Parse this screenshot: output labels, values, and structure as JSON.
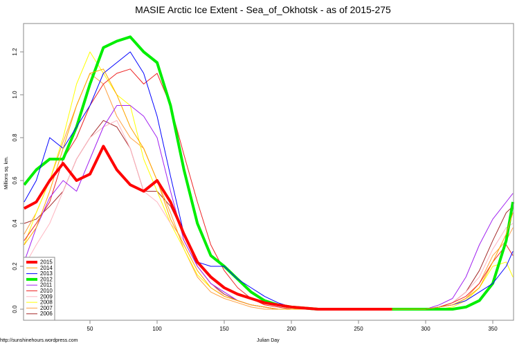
{
  "chart_data": {
    "type": "line",
    "title": "MASIE Arctic Ice Extent - Sea_of_Okhotsk - as of 2015-275",
    "xlabel": "Julian Day",
    "ylabel": "Millions sq. km.",
    "xlim": [
      1,
      365
    ],
    "ylim": [
      0,
      1.3
    ],
    "x_ticks": [
      50,
      100,
      150,
      200,
      250,
      300,
      350
    ],
    "y_ticks": [
      "0.0",
      "0.2",
      "0.4",
      "0.6",
      "0.8",
      "1.0",
      "1.2"
    ],
    "y_tick_values": [
      0.0,
      0.2,
      0.4,
      0.6,
      0.8,
      1.0,
      1.2
    ],
    "grid": false,
    "legend_position": "bottomleft",
    "x": [
      1,
      10,
      20,
      30,
      40,
      50,
      60,
      70,
      80,
      90,
      100,
      110,
      120,
      130,
      140,
      150,
      160,
      170,
      180,
      190,
      200,
      220,
      250,
      275,
      300,
      310,
      320,
      330,
      340,
      350,
      360,
      365
    ],
    "series": [
      {
        "name": "2015",
        "color": "#ff0000",
        "width": 4,
        "values": [
          0.47,
          0.5,
          0.6,
          0.68,
          0.6,
          0.63,
          0.76,
          0.65,
          0.58,
          0.55,
          0.6,
          0.5,
          0.35,
          0.22,
          0.15,
          0.1,
          0.07,
          0.05,
          0.03,
          0.02,
          0.01,
          0.0,
          0.0,
          0.0,
          null,
          null,
          null,
          null,
          null,
          null,
          null,
          null
        ]
      },
      {
        "name": "2014",
        "color": "#ffa500",
        "width": 1,
        "values": [
          0.3,
          0.38,
          0.55,
          0.75,
          0.95,
          1.1,
          1.12,
          1.0,
          0.85,
          0.75,
          0.6,
          0.42,
          0.3,
          0.18,
          0.1,
          0.06,
          0.04,
          0.02,
          0.01,
          0.0,
          0.0,
          0.0,
          0.0,
          0.0,
          0.0,
          0.01,
          0.02,
          0.05,
          0.1,
          0.22,
          0.35,
          0.45
        ]
      },
      {
        "name": "2013",
        "color": "#0000ff",
        "width": 1,
        "values": [
          0.5,
          0.6,
          0.8,
          0.75,
          0.85,
          0.95,
          1.1,
          1.15,
          1.2,
          1.1,
          0.9,
          0.62,
          0.35,
          0.22,
          0.2,
          0.2,
          0.14,
          0.1,
          0.06,
          0.03,
          0.01,
          0.0,
          0.0,
          0.0,
          0.0,
          0.01,
          0.02,
          0.04,
          0.08,
          0.12,
          0.2,
          0.27
        ]
      },
      {
        "name": "2012",
        "color": "#00ee00",
        "width": 4,
        "values": [
          0.58,
          0.65,
          0.7,
          0.7,
          0.85,
          1.05,
          1.22,
          1.25,
          1.27,
          1.2,
          1.15,
          0.95,
          0.65,
          0.4,
          0.25,
          0.2,
          0.14,
          0.08,
          0.04,
          0.02,
          0.01,
          0.0,
          0.0,
          0.0,
          0.0,
          0.0,
          0.0,
          0.01,
          0.04,
          0.12,
          0.32,
          0.5
        ]
      },
      {
        "name": "2011",
        "color": "#a020f0",
        "width": 1,
        "values": [
          0.22,
          0.38,
          0.52,
          0.6,
          0.55,
          0.7,
          0.85,
          0.95,
          0.95,
          0.9,
          0.8,
          0.55,
          0.32,
          0.2,
          0.12,
          0.08,
          0.04,
          0.02,
          0.01,
          0.0,
          0.0,
          0.0,
          0.0,
          0.0,
          0.0,
          0.02,
          0.05,
          0.15,
          0.3,
          0.42,
          0.5,
          0.54
        ]
      },
      {
        "name": "2010",
        "color": "#ee2222",
        "width": 1,
        "values": [
          0.32,
          0.4,
          0.5,
          0.7,
          0.8,
          0.95,
          1.05,
          1.1,
          1.12,
          1.05,
          1.1,
          0.95,
          0.72,
          0.5,
          0.3,
          0.18,
          0.1,
          0.05,
          0.02,
          0.01,
          0.0,
          0.0,
          0.0,
          0.0,
          0.0,
          0.01,
          0.03,
          0.06,
          0.12,
          0.22,
          0.3,
          0.25
        ]
      },
      {
        "name": "2009",
        "color": "#ffb6c1",
        "width": 1,
        "values": [
          0.2,
          0.3,
          0.4,
          0.55,
          0.7,
          0.8,
          0.85,
          0.88,
          0.75,
          0.55,
          0.5,
          0.4,
          0.32,
          0.2,
          0.12,
          0.06,
          0.04,
          0.02,
          0.01,
          0.0,
          0.0,
          0.0,
          0.0,
          0.0,
          0.0,
          0.01,
          0.03,
          0.08,
          0.15,
          0.28,
          0.38,
          0.4
        ]
      },
      {
        "name": "2008",
        "color": "#ffff00",
        "width": 1,
        "values": [
          0.3,
          0.45,
          0.6,
          0.8,
          1.05,
          1.2,
          1.1,
          1.0,
          0.95,
          0.7,
          0.55,
          0.4,
          0.28,
          0.16,
          0.1,
          0.06,
          0.04,
          0.02,
          0.01,
          0.0,
          0.0,
          0.0,
          0.0,
          0.0,
          0.0,
          0.0,
          0.01,
          0.04,
          0.1,
          0.2,
          0.22,
          0.15
        ]
      },
      {
        "name": "2007",
        "color": "#ffa040",
        "width": 1,
        "values": [
          0.35,
          0.45,
          0.6,
          0.78,
          0.95,
          1.1,
          1.05,
          0.9,
          0.8,
          0.75,
          0.6,
          0.45,
          0.28,
          0.15,
          0.08,
          0.05,
          0.03,
          0.01,
          0.0,
          0.0,
          0.0,
          0.0,
          0.0,
          0.0,
          0.0,
          0.01,
          0.02,
          0.05,
          0.12,
          0.25,
          0.32,
          0.38
        ]
      },
      {
        "name": "2006",
        "color": "#a52a2a",
        "width": 1,
        "values": [
          0.4,
          0.42,
          0.48,
          0.55,
          0.7,
          0.8,
          0.88,
          0.85,
          0.75,
          0.55,
          0.55,
          0.48,
          0.35,
          0.2,
          0.12,
          0.07,
          0.04,
          0.02,
          0.01,
          0.0,
          0.0,
          0.0,
          0.0,
          0.0,
          0.0,
          0.01,
          0.03,
          0.08,
          0.18,
          0.32,
          0.45,
          0.48
        ]
      }
    ]
  },
  "labels": {
    "title": "MASIE Arctic Ice Extent - Sea_of_Okhotsk - as of 2015-275",
    "xlabel": "Julian Day",
    "ylabel": "Millions sq. km.",
    "credit": "http://sunshinehours.wordpress.com"
  }
}
